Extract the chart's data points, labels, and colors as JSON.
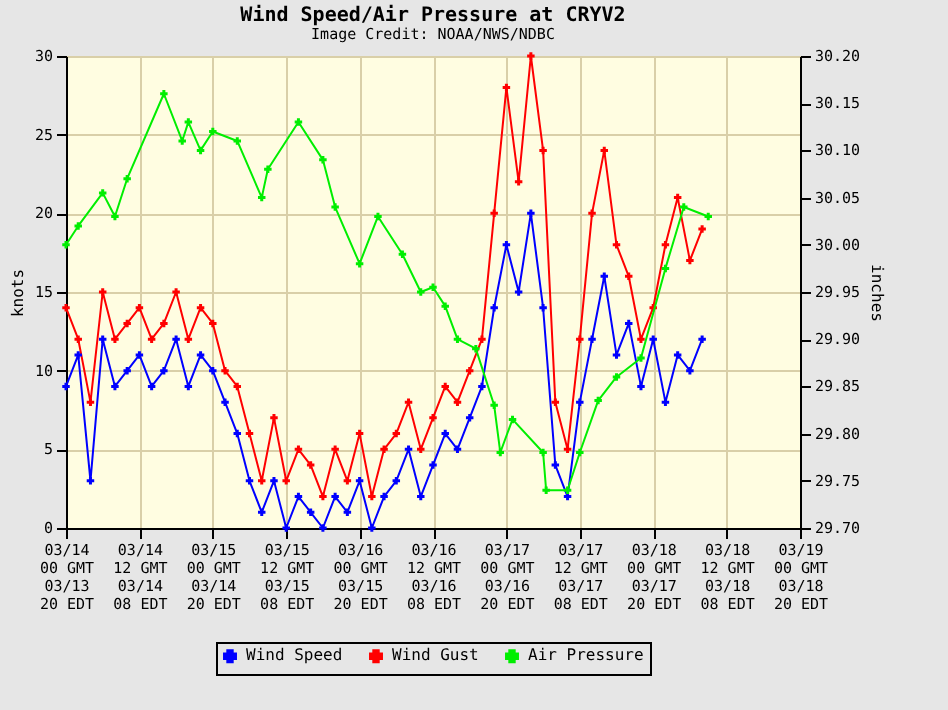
{
  "chart_data": {
    "type": "line",
    "title": "Wind Speed/Air Pressure at CRYV2",
    "subtitle": "Image Credit: NOAA/NWS/NDBC",
    "ylabel": "knots",
    "y2label": "inches",
    "x": [
      "--03-14T00:00",
      "--03-14T02:00",
      "--03-14T04:00",
      "--03-14T06:00",
      "--03-14T08:00",
      "--03-14T10:00",
      "--03-14T12:00",
      "--03-14T14:00",
      "--03-14T16:00",
      "--03-14T18:00",
      "--03-14T20:00",
      "--03-14T22:00",
      "--03-15T00:00",
      "--03-15T02:00",
      "--03-15T04:00",
      "--03-15T06:00",
      "--03-15T08:00",
      "--03-15T10:00",
      "--03-15T12:00",
      "--03-15T14:00",
      "--03-15T16:00",
      "--03-15T18:00",
      "--03-15T20:00",
      "--03-15T22:00",
      "--03-16T00:00",
      "--03-16T02:00",
      "--03-16T04:00",
      "--03-16T06:00",
      "--03-16T08:00",
      "--03-16T10:00",
      "--03-16T12:00",
      "--03-16T14:00",
      "--03-16T16:00",
      "--03-16T18:00",
      "--03-16T20:00",
      "--03-16T22:00",
      "--03-17T00:00",
      "--03-17T02:00",
      "--03-17T04:00",
      "--03-17T06:00",
      "--03-17T08:00",
      "--03-17T10:00",
      "--03-17T12:00",
      "--03-17T14:00",
      "--03-17T16:00",
      "--03-17T18:00",
      "--03-17T20:00",
      "--03-17T22:00",
      "--03-18T00:00",
      "--03-18T02:00",
      "--03-18T04:00",
      "--03-18T06:00",
      "--03-18T08:00"
    ],
    "series": [
      {
        "name": "Wind Speed",
        "color": "#0000ff",
        "values": [
          9,
          11,
          3,
          12,
          9,
          10,
          11,
          9,
          10,
          12,
          9,
          11,
          10,
          8,
          6,
          3,
          1,
          3,
          0,
          2,
          1,
          0,
          2,
          1,
          3,
          0,
          2,
          3,
          5,
          2,
          4,
          6,
          5,
          7,
          9,
          14,
          18,
          15,
          20,
          14,
          4,
          2,
          8,
          12,
          16,
          11,
          13,
          9,
          12,
          8,
          11,
          10,
          12
        ]
      },
      {
        "name": "Wind Gust",
        "color": "#ff0000",
        "values": [
          14,
          12,
          8,
          15,
          12,
          13,
          14,
          12,
          13,
          15,
          12,
          14,
          13,
          10,
          9,
          6,
          3,
          7,
          3,
          5,
          4,
          2,
          5,
          3,
          6,
          2,
          5,
          6,
          8,
          5,
          7,
          9,
          8,
          10,
          12,
          20,
          28,
          22,
          30,
          24,
          8,
          5,
          12,
          20,
          24,
          18,
          16,
          12,
          14,
          18,
          21,
          17,
          19
        ]
      },
      {
        "name": "Air Pressure",
        "color": "#00ee00",
        "axis": "y2",
        "x": [
          "--03-14T00:00",
          "--03-14T02:00",
          "--03-14T06:00",
          "--03-14T08:00",
          "--03-14T10:00",
          "--03-14T16:00",
          "--03-14T19:00",
          "--03-14T20:00",
          "--03-14T22:00",
          "--03-15T00:00",
          "--03-15T04:00",
          "--03-15T08:00",
          "--03-15T09:00",
          "--03-15T14:00",
          "--03-15T18:00",
          "--03-15T20:00",
          "--03-16T00:00",
          "--03-16T03:00",
          "--03-16T07:00",
          "--03-16T10:00",
          "--03-16T12:00",
          "--03-16T14:00",
          "--03-16T16:00",
          "--03-16T19:00",
          "--03-16T22:00",
          "--03-16T23:00",
          "--03-17T01:00",
          "--03-17T06:00",
          "--03-17T06:30",
          "--03-17T10:00",
          "--03-17T12:00",
          "--03-17T15:00",
          "--03-17T18:00",
          "--03-17T22:00",
          "--03-18T02:00",
          "--03-18T05:00",
          "--03-18T09:00"
        ],
        "values": [
          30.0,
          30.02,
          30.055,
          30.03,
          30.07,
          30.16,
          30.11,
          30.13,
          30.1,
          30.12,
          30.11,
          30.05,
          30.08,
          30.13,
          30.09,
          30.04,
          29.98,
          30.03,
          29.99,
          29.95,
          29.955,
          29.935,
          29.9,
          29.89,
          29.83,
          29.78,
          29.815,
          29.78,
          29.74,
          29.74,
          29.78,
          29.835,
          29.86,
          29.88,
          29.975,
          30.04,
          30.03
        ]
      }
    ],
    "xlim": [
      "--03-14T00:00",
      "--03-19T00:00"
    ],
    "xticks": [
      {
        "value": "--03-14T00:00",
        "label": "03/14\n00 GMT\n\n03/13\n20 EDT"
      },
      {
        "value": "--03-14T12:00",
        "label": "03/14\n12 GMT\n\n03/14\n08 EDT"
      },
      {
        "value": "--03-15T00:00",
        "label": "03/15\n00 GMT\n\n03/14\n20 EDT"
      },
      {
        "value": "--03-15T12:00",
        "label": "03/15\n12 GMT\n\n03/15\n08 EDT"
      },
      {
        "value": "--03-16T00:00",
        "label": "03/16\n00 GMT\n\n03/15\n20 EDT"
      },
      {
        "value": "--03-16T12:00",
        "label": "03/16\n12 GMT\n\n03/16\n08 EDT"
      },
      {
        "value": "--03-17T00:00",
        "label": "03/17\n00 GMT\n\n03/16\n20 EDT"
      },
      {
        "value": "--03-17T12:00",
        "label": "03/17\n12 GMT\n\n03/17\n08 EDT"
      },
      {
        "value": "--03-18T00:00",
        "label": "03/18\n00 GMT\n\n03/17\n20 EDT"
      },
      {
        "value": "--03-18T12:00",
        "label": "03/18\n12 GMT\n\n03/18\n08 EDT"
      },
      {
        "value": "--03-19T00:00",
        "label": "03/19\n00 GMT\n\n03/18\n20 EDT"
      }
    ],
    "ylim": [
      0,
      30
    ],
    "yticks": [
      0,
      5,
      10,
      15,
      20,
      25,
      30
    ],
    "y2lim": [
      29.7,
      30.2
    ],
    "y2ticks": [
      {
        "value": 29.7,
        "label": "29.70"
      },
      {
        "value": 29.75,
        "label": "29.75"
      },
      {
        "value": 29.8,
        "label": "29.80"
      },
      {
        "value": 29.85,
        "label": "29.85"
      },
      {
        "value": 29.9,
        "label": "29.90"
      },
      {
        "value": 29.95,
        "label": "29.95"
      },
      {
        "value": 30.0,
        "label": "30.00"
      },
      {
        "value": 30.05,
        "label": "30.05"
      },
      {
        "value": 30.1,
        "label": "30.10"
      },
      {
        "value": 30.15,
        "label": "30.15"
      },
      {
        "value": 30.2,
        "label": "30.20"
      }
    ],
    "grid": true,
    "legend": "bottom",
    "marker": "cross",
    "line_style": "solid"
  }
}
